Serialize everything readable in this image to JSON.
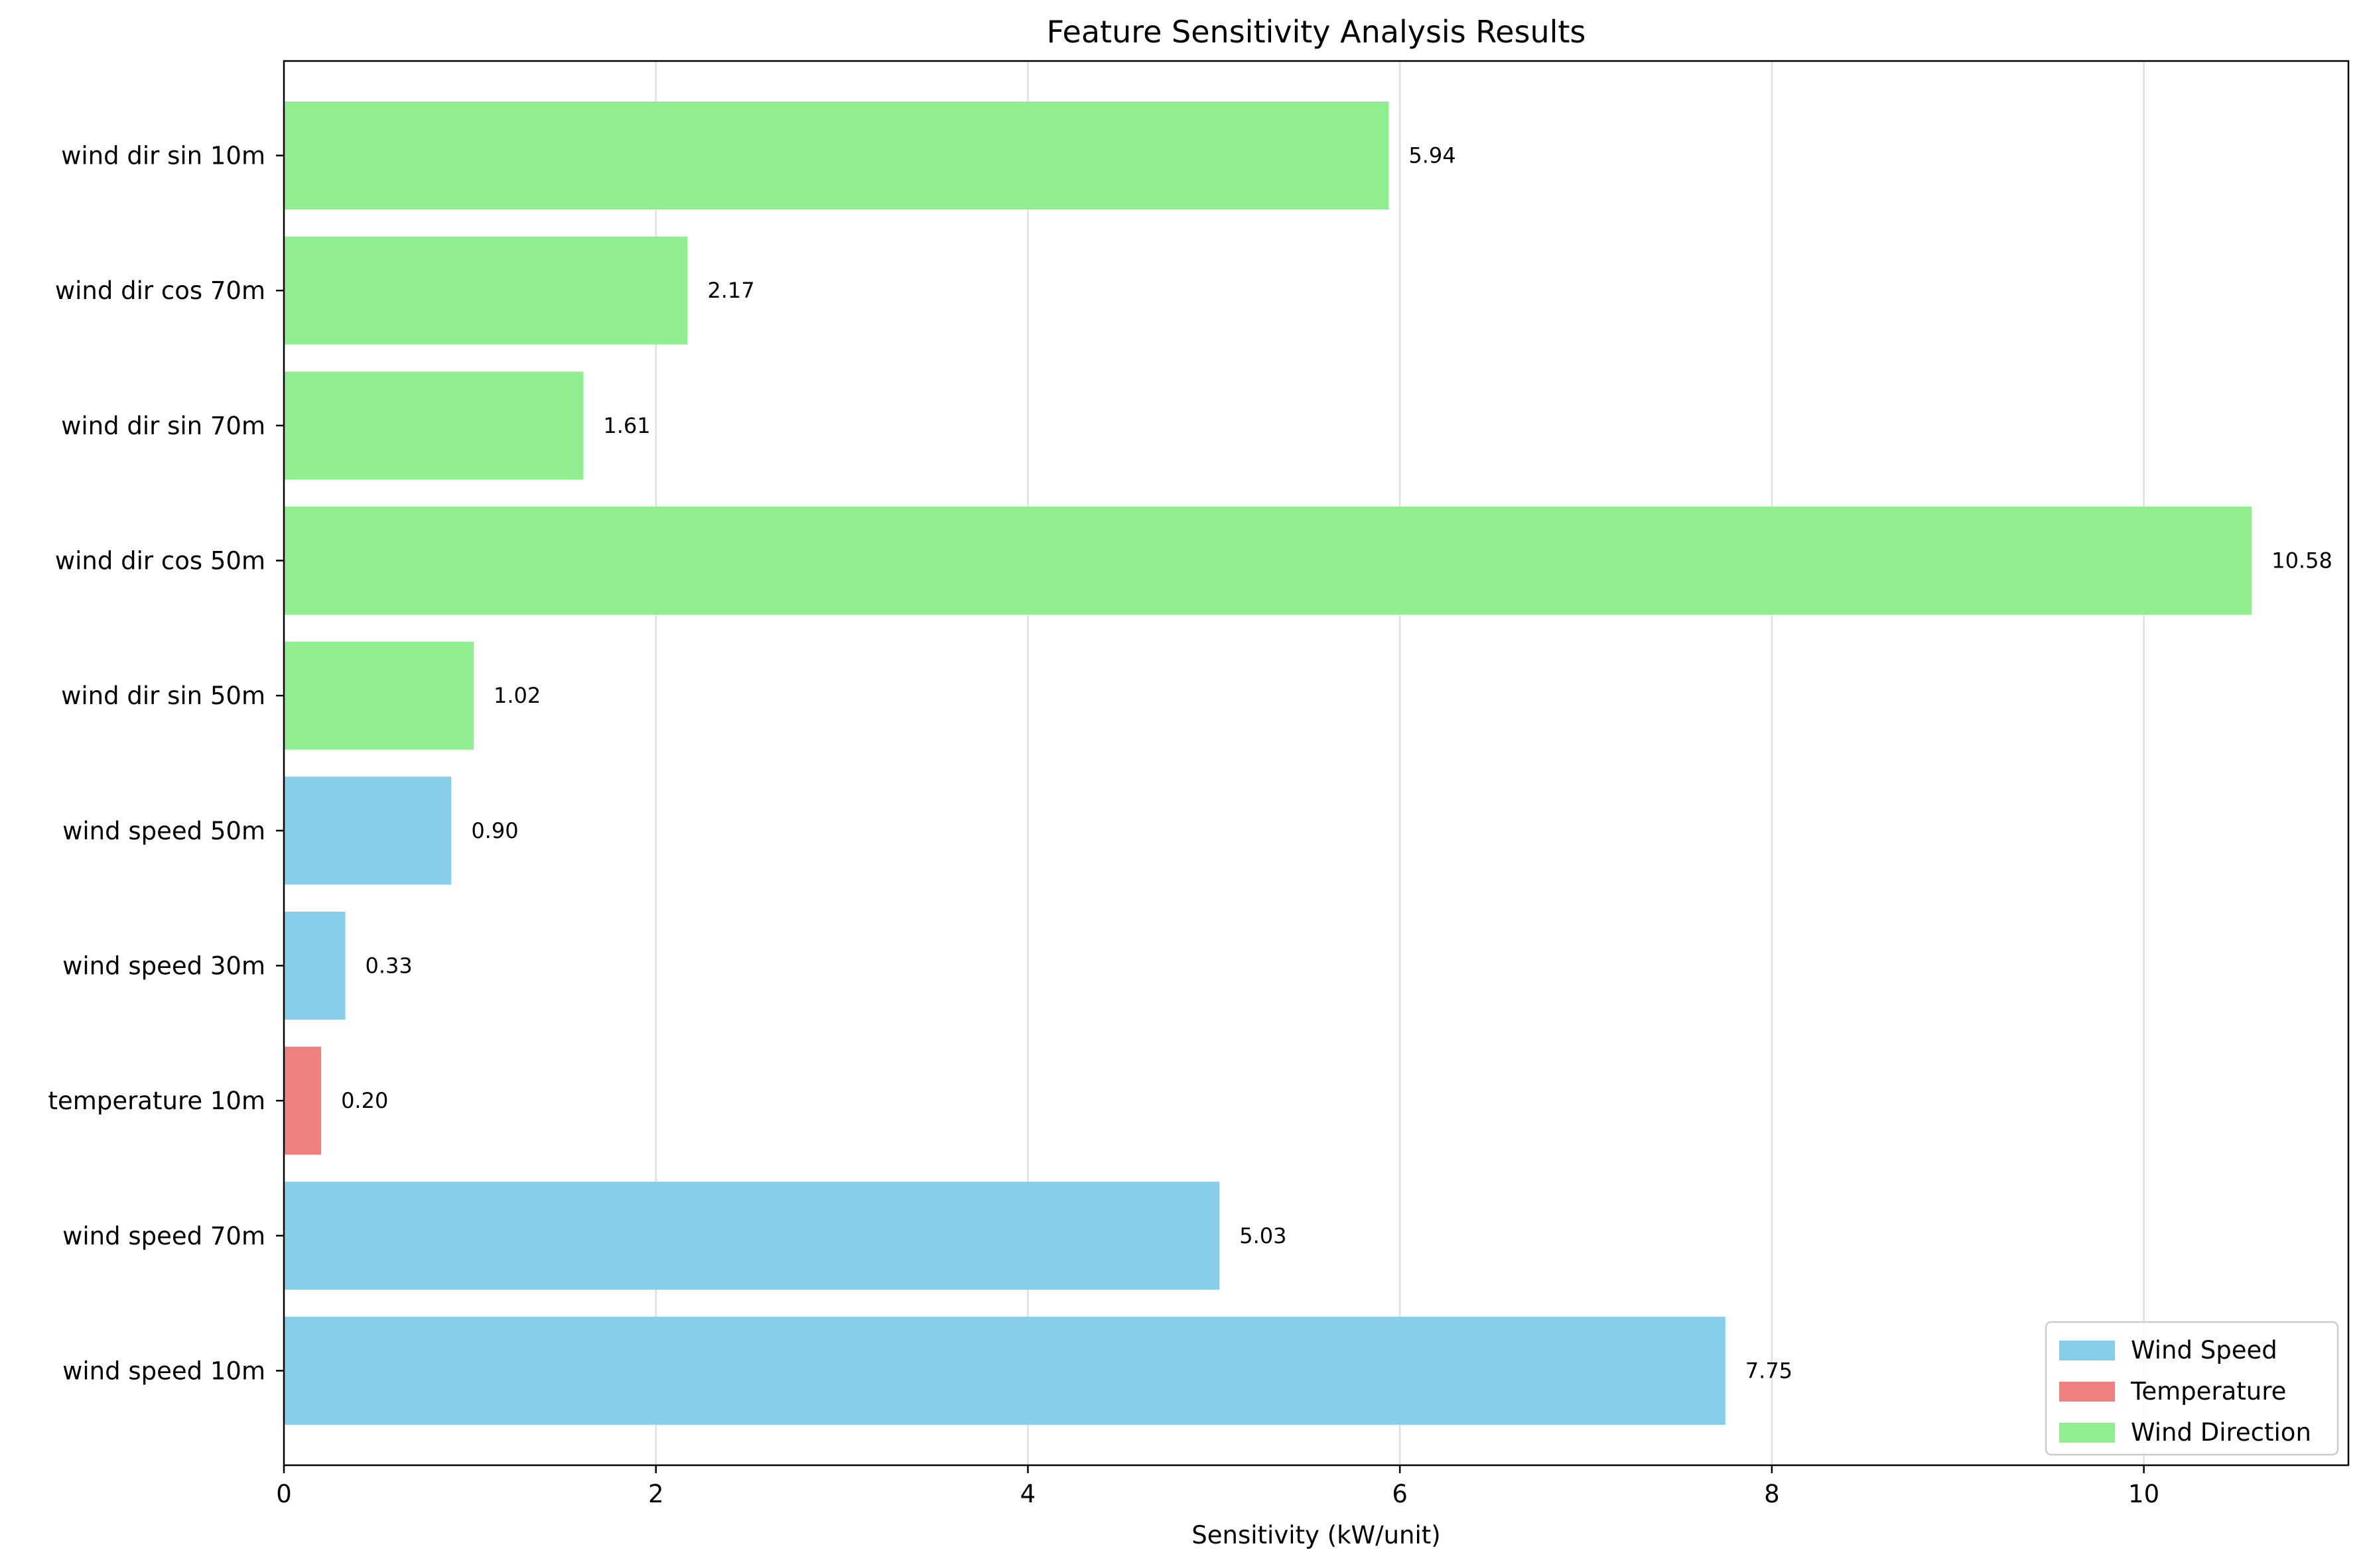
{
  "chart_data": {
    "type": "bar",
    "orientation": "horizontal",
    "title": "Feature Sensitivity Analysis Results",
    "xlabel": "Sensitivity (kW/unit)",
    "ylabel": "",
    "xlim": [
      0,
      11.1
    ],
    "xticks": [
      0,
      2,
      4,
      6,
      8,
      10
    ],
    "grid": "x",
    "legend_position": "lower-right",
    "categories": [
      "wind speed 10m",
      "wind speed 70m",
      "temperature 10m",
      "wind speed 30m",
      "wind speed 50m",
      "wind dir sin 50m",
      "wind dir cos 50m",
      "wind dir sin 70m",
      "wind dir cos 70m",
      "wind dir sin 10m"
    ],
    "values": [
      7.75,
      5.03,
      0.2,
      0.33,
      0.9,
      1.02,
      10.58,
      1.61,
      2.17,
      5.94
    ],
    "value_labels": [
      "7.75",
      "5.03",
      "0.20",
      "0.33",
      "0.90",
      "1.02",
      "10.58",
      "1.61",
      "2.17",
      "5.94"
    ],
    "groups": [
      "wind_speed",
      "wind_speed",
      "temperature",
      "wind_speed",
      "wind_speed",
      "wind_direction",
      "wind_direction",
      "wind_direction",
      "wind_direction",
      "wind_direction"
    ],
    "legend": [
      {
        "key": "wind_speed",
        "label": "Wind Speed",
        "color": "#87CEEB"
      },
      {
        "key": "temperature",
        "label": "Temperature",
        "color": "#F08080"
      },
      {
        "key": "wind_direction",
        "label": "Wind Direction",
        "color": "#90EE90"
      }
    ]
  }
}
